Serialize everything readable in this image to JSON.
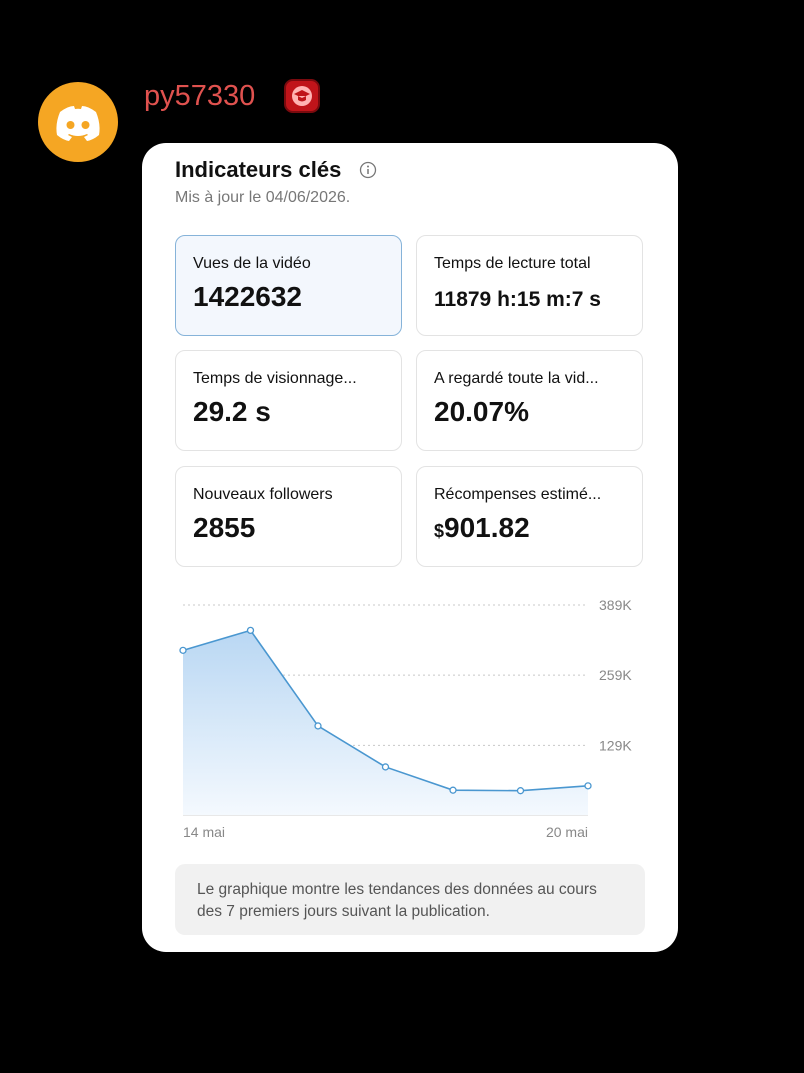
{
  "message": {
    "username": "py57330"
  },
  "card": {
    "title": "Indicateurs clés",
    "subtitle": "Mis à jour le 04/06/2026.",
    "metrics": [
      {
        "label": "Vues de la vidéo",
        "value": "1422632"
      },
      {
        "label": "Temps de lecture total",
        "value": "11879 h:15 m:7 s"
      },
      {
        "label": "Temps de visionnage...",
        "value": "29.2 s"
      },
      {
        "label": "A regardé toute la vid...",
        "value": "20.07%"
      },
      {
        "label": "Nouveaux followers",
        "value": "2855"
      },
      {
        "label": "Récompenses estimé...",
        "currency": "$",
        "value": "901.82"
      }
    ],
    "note": "Le graphique montre les tendances des données au cours des 7 premiers jours suivant la publication."
  },
  "chart_data": {
    "type": "line",
    "categories": [
      "14 mai",
      null,
      null,
      null,
      null,
      null,
      "20 mai"
    ],
    "values": [
      305000,
      342000,
      165000,
      89000,
      46000,
      45000,
      54000
    ],
    "color": "#4a97d0",
    "ylim": [
      0,
      389000
    ],
    "yticks": [
      {
        "value": 129000,
        "label": "129K"
      },
      {
        "value": 259000,
        "label": "259K"
      },
      {
        "value": 389000,
        "label": "389K"
      }
    ],
    "grid": true
  }
}
